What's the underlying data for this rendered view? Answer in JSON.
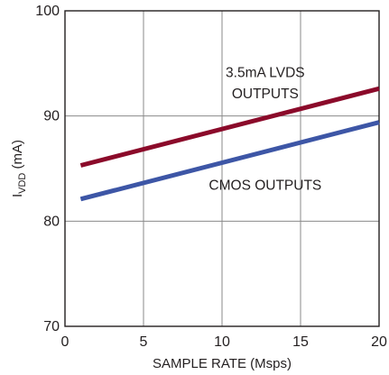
{
  "chart_data": {
    "type": "line",
    "xlabel": "SAMPLE RATE (Msps)",
    "ylabel": {
      "main": "I",
      "sub": "VDD",
      "rest": " (mA)"
    },
    "xlim": [
      0,
      20
    ],
    "ylim": [
      70,
      100
    ],
    "x_ticks": [
      0,
      5,
      10,
      15,
      20
    ],
    "y_ticks": [
      70,
      80,
      90,
      100
    ],
    "grid": true,
    "series": [
      {
        "name": "3.5mA LVDS OUTPUTS",
        "color": "#8b0a2a",
        "x": [
          1,
          20
        ],
        "y": [
          85.3,
          92.6
        ]
      },
      {
        "name": "CMOS OUTPUTS",
        "color": "#3d56a6",
        "x": [
          1,
          20
        ],
        "y": [
          82.1,
          89.4
        ]
      }
    ],
    "annotations": [
      {
        "lines": [
          "3.5mA LVDS",
          "OUTPUTS"
        ],
        "x": 12.75,
        "y": [
          93.7,
          91.7
        ]
      },
      {
        "lines": [
          "CMOS OUTPUTS"
        ],
        "x": 12.75,
        "y": [
          83.0
        ]
      }
    ]
  }
}
